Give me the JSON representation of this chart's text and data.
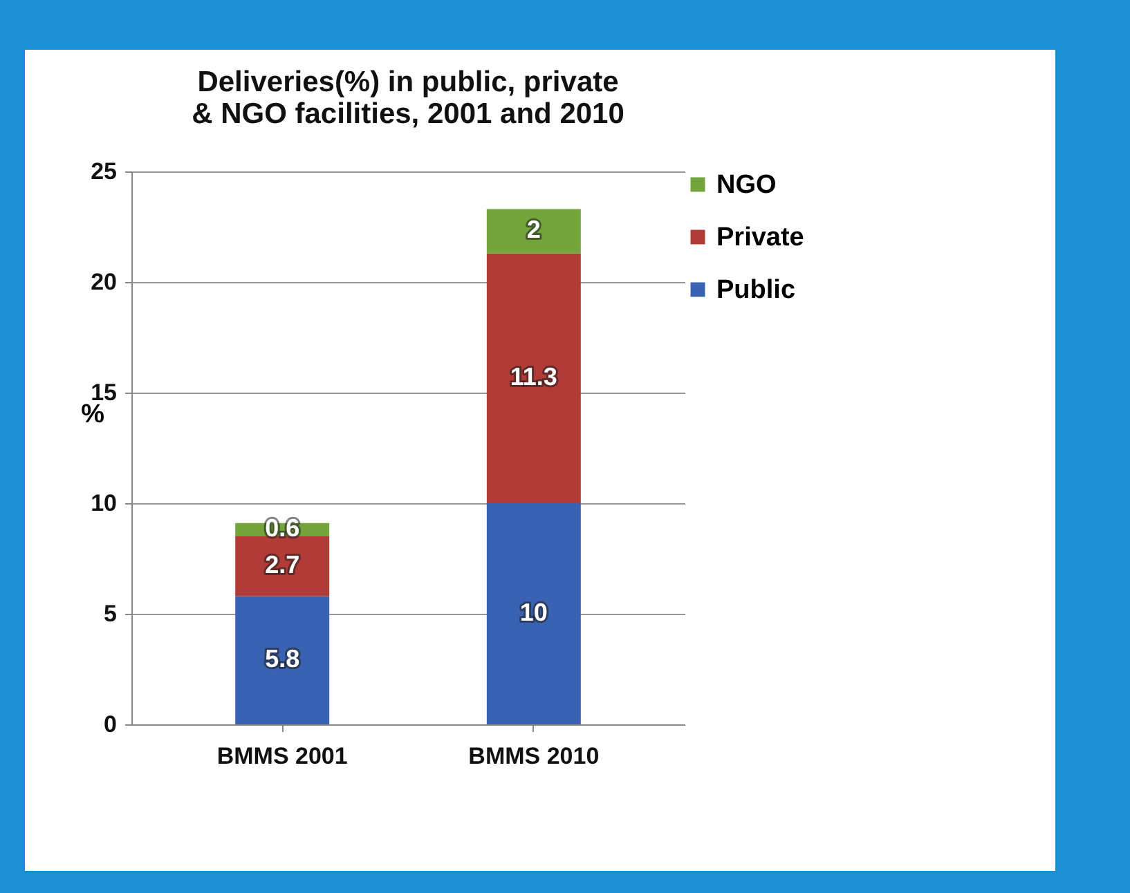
{
  "chart_data": {
    "type": "bar",
    "title": "Deliveries(%)  in public, private\n& NGO facilities, 2001 and 2010",
    "ylabel": "%",
    "categories": [
      "BMMS 2001",
      "BMMS 2010"
    ],
    "series": [
      {
        "name": "Public",
        "color": "#3a62b2",
        "values": [
          5.8,
          10
        ]
      },
      {
        "name": "Private",
        "color": "#b13b36",
        "values": [
          2.7,
          11.3
        ]
      },
      {
        "name": "NGO",
        "color": "#74a53c",
        "values": [
          0.6,
          2
        ]
      }
    ],
    "stacked": true,
    "data_labels": true,
    "ylim": [
      0,
      25
    ],
    "yticks": [
      0,
      5,
      10,
      15,
      20,
      25
    ],
    "grid": "y",
    "legend": "right"
  }
}
